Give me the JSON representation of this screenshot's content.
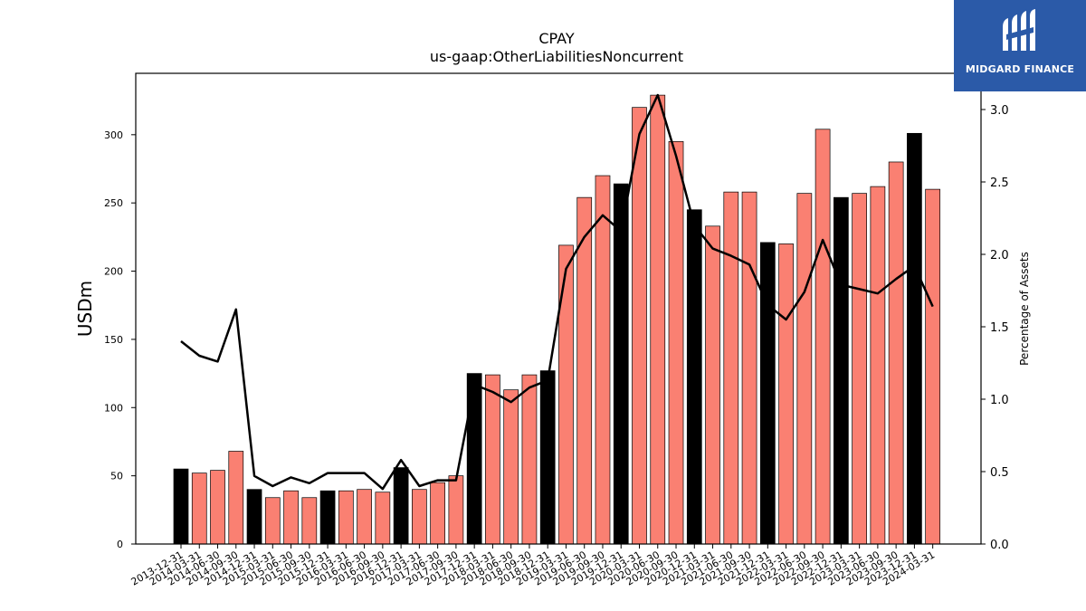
{
  "chart_data": {
    "type": "bar",
    "title": "CPAY",
    "subtitle": "us-gaap:OtherLiabilitiesNoncurrent",
    "ylabel": "USDm",
    "ylabel_right": "Percentage of Assets",
    "ylim": [
      0,
      345
    ],
    "ylim_right": [
      0,
      3.25
    ],
    "yticks": [
      0,
      50,
      100,
      150,
      200,
      250,
      300
    ],
    "yticks_right": [
      "0.0",
      "0.5",
      "1.0",
      "1.5",
      "2.0",
      "2.5",
      "3.0"
    ],
    "categories": [
      "2013-12-31",
      "2014-03-31",
      "2014-06-30",
      "2014-09-30",
      "2014-12-31",
      "2015-03-31",
      "2015-06-30",
      "2015-09-30",
      "2015-12-31",
      "2016-03-31",
      "2016-06-30",
      "2016-09-30",
      "2016-12-31",
      "2017-03-31",
      "2017-06-30",
      "2017-09-30",
      "2017-12-31",
      "2018-03-31",
      "2018-06-30",
      "2018-09-30",
      "2018-12-31",
      "2019-03-31",
      "2019-06-30",
      "2019-09-30",
      "2019-12-31",
      "2020-03-31",
      "2020-06-30",
      "2020-09-30",
      "2020-12-31",
      "2021-03-31",
      "2021-06-30",
      "2021-09-30",
      "2021-12-31",
      "2022-03-31",
      "2022-06-30",
      "2022-09-30",
      "2022-12-31",
      "2023-03-31",
      "2023-06-30",
      "2023-09-30",
      "2023-12-31",
      "2024-03-31"
    ],
    "series": [
      {
        "values": [
          55,
          52,
          54,
          68,
          40,
          34,
          39,
          34,
          39,
          39,
          40,
          38,
          56,
          40,
          45,
          50,
          125,
          124,
          113,
          124,
          127,
          219,
          254,
          270,
          264,
          320,
          329,
          295,
          245,
          233,
          258,
          258,
          221,
          220,
          257,
          304,
          254,
          257,
          262,
          280,
          301,
          260
        ]
      },
      {
        "axis": "right",
        "type": "line",
        "values": [
          1.4,
          1.3,
          1.26,
          1.62,
          0.47,
          0.4,
          0.46,
          0.42,
          0.49,
          0.49,
          0.49,
          0.38,
          0.58,
          0.4,
          0.44,
          0.44,
          1.1,
          1.05,
          0.98,
          1.08,
          1.13,
          1.9,
          2.12,
          2.27,
          2.16,
          2.83,
          3.1,
          2.68,
          2.2,
          2.04,
          1.99,
          1.93,
          1.65,
          1.55,
          1.74,
          2.1,
          1.79,
          1.76,
          1.73,
          1.83,
          1.92,
          1.64
        ]
      }
    ],
    "year_end_color": "#000000",
    "bar_color": "#fa8072",
    "line_color": "#000000"
  },
  "logo": {
    "text": "MIDGARD FINANCE",
    "background": "#2b5aa8"
  }
}
